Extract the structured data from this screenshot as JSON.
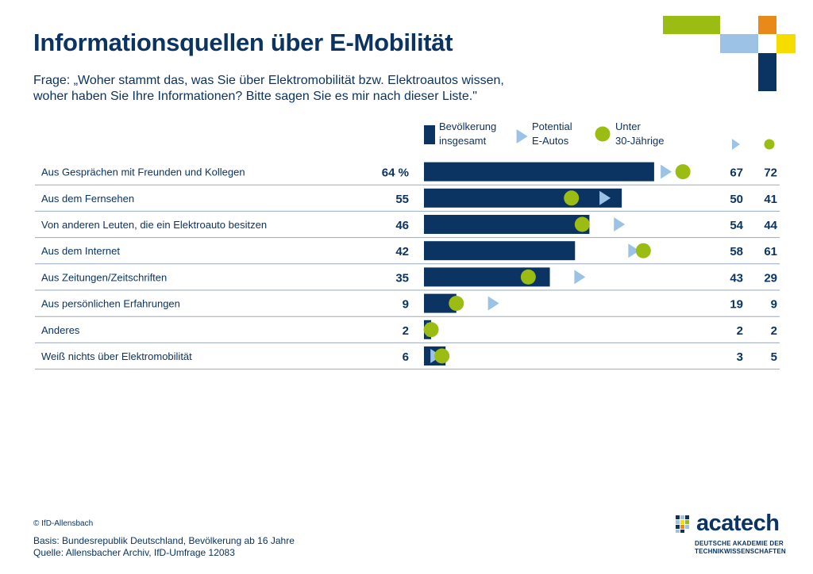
{
  "title": "Informationsquellen über E-Mobilität",
  "subtitle_line1": "Frage: „Woher stammt das, was Sie über Elektromobilität bzw. Elektroautos wissen,",
  "subtitle_line2": "woher haben Sie Ihre Informationen? Bitte sagen Sie es mir nach dieser Liste.\"",
  "colors": {
    "navy": "#0b3463",
    "light_blue": "#9cc3e5",
    "green": "#9bbd13",
    "orange": "#e8891a",
    "yellow": "#f5dd00",
    "rule": "#9aa9bd"
  },
  "chart_data": {
    "type": "bar",
    "value_suffix_first_row": " %",
    "categories": [
      "Aus Gesprächen mit Freunden und Kollegen",
      "Aus dem Fernsehen",
      "Von anderen Leuten, die ein Elektroauto besitzen",
      "Aus dem Internet",
      "Aus Zeitungen/Zeitschriften",
      "Aus persönlichen Erfahrungen",
      "Anderes",
      "Weiß nichts über Elektromobilität"
    ],
    "series": [
      {
        "name": "Bevölkerung insgesamt",
        "name_line1": "Bevölkerung",
        "name_line2": "insgesamt",
        "marker": "bar",
        "values": [
          64,
          55,
          46,
          42,
          35,
          9,
          2,
          6
        ]
      },
      {
        "name": "Potential E-Autos",
        "name_line1": "Potential",
        "name_line2": "E-Autos",
        "marker": "triangle",
        "values": [
          67,
          50,
          54,
          58,
          43,
          19,
          2,
          3
        ]
      },
      {
        "name": "Unter 30-Jährige",
        "name_line1": "Unter",
        "name_line2": "30-Jährige",
        "marker": "circle",
        "values": [
          72,
          41,
          44,
          61,
          29,
          9,
          2,
          5
        ]
      }
    ],
    "xlim": [
      0,
      100
    ],
    "legend_placement": "top-center",
    "grid": false
  },
  "footer": {
    "copyright": "© IfD-Allensbach",
    "basis": "Basis: Bundesrepublik Deutschland, Bevölkerung ab 16 Jahre",
    "source": "Quelle: Allensbacher Archiv, IfD-Umfrage 12083"
  },
  "logo": {
    "word": "acatech",
    "sub_line1": "DEUTSCHE AKADEMIE DER",
    "sub_line2": "TECHNIKWISSENSCHAFTEN"
  }
}
